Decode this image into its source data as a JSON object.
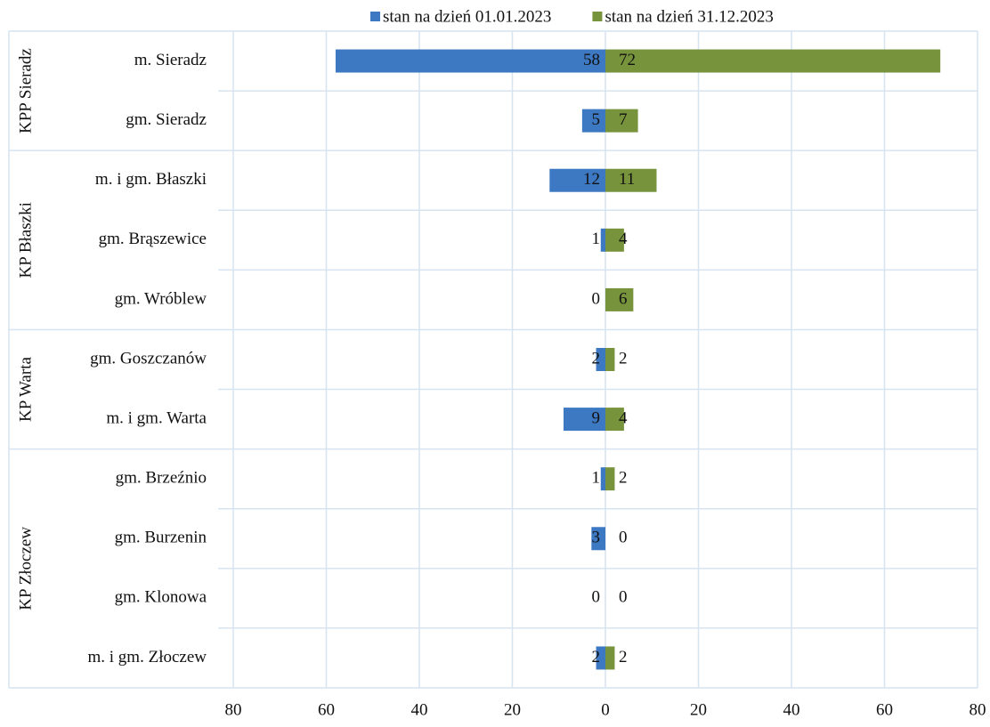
{
  "chart_data": {
    "type": "butterfly-bar",
    "groups": [
      {
        "label": "KPP Sieradz",
        "categories": [
          "m. Sieradz",
          "gm. Sieradz"
        ]
      },
      {
        "label": "KP Błaszki",
        "categories": [
          "m. i gm. Błaszki",
          "gm. Brąszewice",
          "gm. Wróblew"
        ]
      },
      {
        "label": "KP Warta",
        "categories": [
          "gm. Goszczanów",
          "m. i gm. Warta"
        ]
      },
      {
        "label": "KP Złoczew",
        "categories": [
          "gm. Brzeźnio",
          "gm. Burzenin",
          "gm. Klonowa",
          "m. i gm. Złoczew"
        ]
      }
    ],
    "series": [
      {
        "name": "stan na dzień 01.01.2023",
        "color": "#3d78c2",
        "values": [
          -58,
          -5,
          -12,
          -1,
          0,
          -2,
          -9,
          -1,
          -3,
          0,
          -2
        ],
        "value_labels": [
          "58",
          "5",
          "12",
          "1",
          "0",
          "2",
          "9",
          "1",
          "3",
          "0",
          "2"
        ]
      },
      {
        "name": "stan na dzień 31.12.2023",
        "color": "#77933c",
        "values": [
          72,
          7,
          11,
          4,
          6,
          2,
          4,
          2,
          0,
          0,
          2
        ]
      }
    ],
    "xlim": [
      -80,
      80
    ],
    "xticks": [
      {
        "value": -80,
        "label": "80"
      },
      {
        "value": -60,
        "label": "60"
      },
      {
        "value": -40,
        "label": "40"
      },
      {
        "value": -20,
        "label": "20"
      },
      0,
      20,
      40,
      60,
      80
    ],
    "grid": true,
    "legend": "top"
  }
}
